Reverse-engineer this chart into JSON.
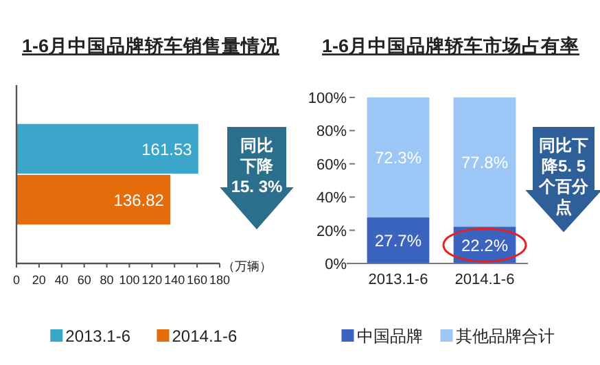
{
  "chart_data": [
    {
      "type": "bar",
      "title": "1-6月中国品牌轿车销售量情况",
      "orientation": "horizontal",
      "categories": [
        null
      ],
      "series": [
        {
          "name": "2013.1-6",
          "color": "#3ba6c9",
          "values": [
            161.53
          ]
        },
        {
          "name": "2014.1-6",
          "color": "#e46c0a",
          "values": [
            136.82
          ]
        }
      ],
      "xlim": [
        0,
        180
      ],
      "xticks": [
        0,
        20,
        40,
        60,
        80,
        100,
        120,
        140,
        160,
        180
      ],
      "xlabel": "（万辆）",
      "data_labels": true,
      "legend": "bottom",
      "annotations": [
        "同比下降15. 3%"
      ]
    },
    {
      "type": "bar",
      "title": "1-6月中国品牌轿车市场占有率",
      "stacked": true,
      "categories": [
        "2013.1-6",
        "2014.1-6"
      ],
      "series": [
        {
          "name": "中国品牌",
          "color": "#3b64c0",
          "values": [
            27.7,
            22.2
          ],
          "value_labels": [
            "27.7%",
            "22.2%"
          ]
        },
        {
          "name": "其他品牌合计",
          "color": "#9cc6f6",
          "values": [
            72.3,
            77.8
          ],
          "value_labels": [
            "72.3%",
            "77.8%"
          ]
        }
      ],
      "ylim": [
        0,
        100
      ],
      "yticks": [
        {
          "value": 0,
          "label": "0%"
        },
        {
          "value": 20,
          "label": "20%"
        },
        {
          "value": 40,
          "label": "40%"
        },
        {
          "value": 60,
          "label": "60%"
        },
        {
          "value": 80,
          "label": "80%"
        },
        {
          "value": 100,
          "label": "100%"
        }
      ],
      "legend": "bottom",
      "annotations": [
        "同比下降5. 5个百分点"
      ]
    }
  ]
}
